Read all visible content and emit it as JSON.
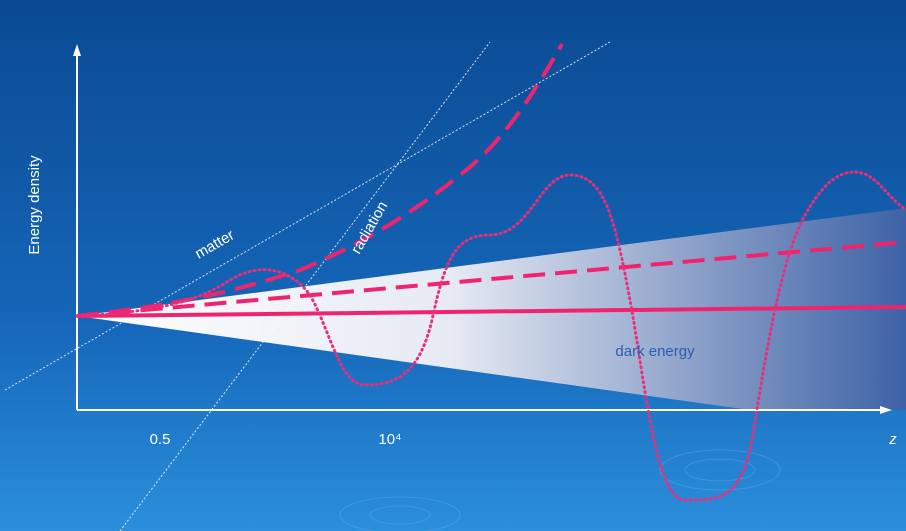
{
  "axes": {
    "y_label": "Energy density",
    "x_label": "z",
    "x_marks": [
      "0.5",
      "10⁴"
    ]
  },
  "curves": {
    "matter": "matter",
    "radiation": "radiation",
    "dark_energy": "dark energy"
  }
}
